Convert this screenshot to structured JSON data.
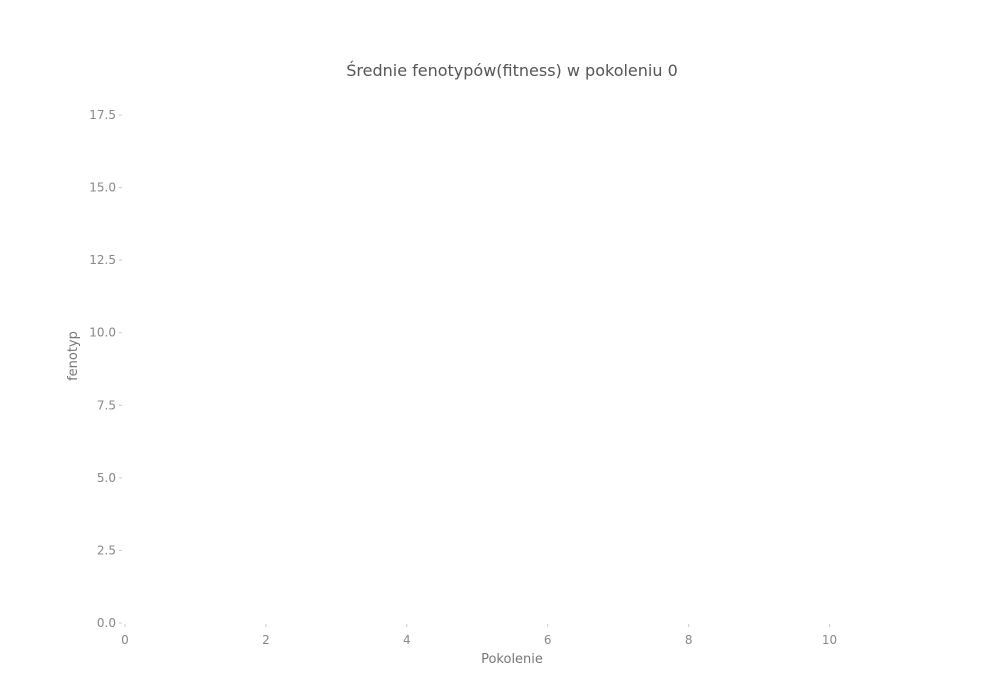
{
  "chart_data": {
    "type": "line",
    "title": "Średnie fenotypów(fitness) w pokoleniu 0",
    "xlabel": "Pokolenie",
    "ylabel": "fenotyp",
    "xlim": [
      0,
      11
    ],
    "ylim": [
      0,
      17.5
    ],
    "x_ticks": [
      0,
      2,
      4,
      6,
      8,
      10
    ],
    "x_tick_labels": [
      "0",
      "2",
      "4",
      "6",
      "8",
      "10"
    ],
    "y_ticks": [
      0,
      2.5,
      5,
      7.5,
      10,
      12.5,
      15,
      17.5
    ],
    "y_tick_labels": [
      "0.0",
      "2.5",
      "5.0",
      "7.5",
      "10.0",
      "12.5",
      "15.0",
      "17.5"
    ],
    "series": [],
    "grid": false,
    "legend": "none"
  }
}
